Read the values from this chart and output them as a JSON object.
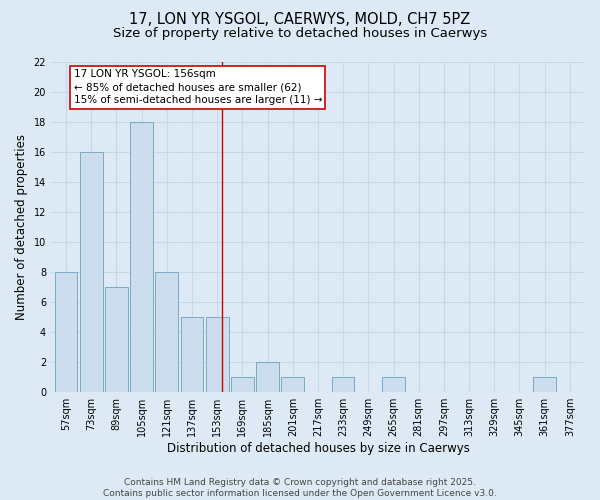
{
  "title1": "17, LON YR YSGOL, CAERWYS, MOLD, CH7 5PZ",
  "title2": "Size of property relative to detached houses in Caerwys",
  "xlabel": "Distribution of detached houses by size in Caerwys",
  "ylabel": "Number of detached properties",
  "bins": [
    "57sqm",
    "73sqm",
    "89sqm",
    "105sqm",
    "121sqm",
    "137sqm",
    "153sqm",
    "169sqm",
    "185sqm",
    "201sqm",
    "217sqm",
    "233sqm",
    "249sqm",
    "265sqm",
    "281sqm",
    "297sqm",
    "313sqm",
    "329sqm",
    "345sqm",
    "361sqm",
    "377sqm"
  ],
  "values": [
    8,
    16,
    7,
    18,
    8,
    5,
    5,
    1,
    2,
    1,
    0,
    1,
    0,
    1,
    0,
    0,
    0,
    0,
    0,
    1,
    0
  ],
  "bar_color": "#ccdded",
  "bar_edge_color": "#7aaac4",
  "bar_edge_width": 0.7,
  "grid_color": "#c5d8e8",
  "background_color": "#ddeaf5",
  "annotation_text": "17 LON YR YSGOL: 156sqm\n← 85% of detached houses are smaller (62)\n15% of semi-detached houses are larger (11) →",
  "annotation_box_color": "white",
  "annotation_box_edge_color": "#cc0000",
  "ylim": [
    0,
    22
  ],
  "yticks": [
    0,
    2,
    4,
    6,
    8,
    10,
    12,
    14,
    16,
    18,
    20,
    22
  ],
  "footer_text": "Contains HM Land Registry data © Crown copyright and database right 2025.\nContains public sector information licensed under the Open Government Licence v3.0.",
  "red_line_color": "#cc0000",
  "title1_fontsize": 10.5,
  "title2_fontsize": 9.5,
  "label_fontsize": 8.5,
  "tick_fontsize": 7,
  "footer_fontsize": 6.5,
  "annot_fontsize": 7.5
}
